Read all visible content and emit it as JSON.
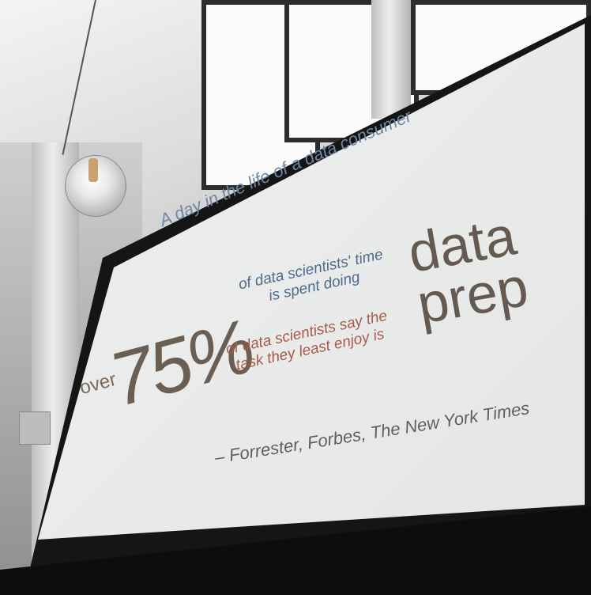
{
  "slide": {
    "heading": "A day in the life of a data consumer",
    "over_label": "over",
    "percentage": "75%",
    "statement1_line1": "of data scientists' time",
    "statement1_line2": "is spent doing",
    "statement2_line1": "of data scientists say the",
    "statement2_line2": "task they least enjoy is",
    "highlight_line1": "data",
    "highlight_line2": "prep",
    "source": "– Forrester, Forbes, The New York Times"
  },
  "colors": {
    "heading_blue": "#6f86a3",
    "statement_blue": "#4f6a8f",
    "statement_red": "#a75a4a",
    "highlight": "#645a52"
  }
}
